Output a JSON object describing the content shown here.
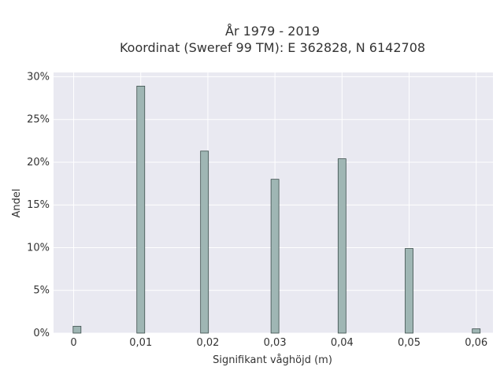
{
  "chart_data": {
    "type": "bar",
    "title_lines": [
      "År 1979 - 2019",
      "Koordinat (Sweref 99 TM): E 362828, N 6142708"
    ],
    "xlabel": "Signifikant våghöjd (m)",
    "ylabel": "Andel",
    "x_ticks": [
      "0",
      "0,01",
      "0,02",
      "0,03",
      "0,04",
      "0,05",
      "0,06"
    ],
    "x_tick_values": [
      0,
      0.01,
      0.02,
      0.03,
      0.04,
      0.05,
      0.06
    ],
    "y_ticks": [
      "0%",
      "5%",
      "10%",
      "15%",
      "20%",
      "25%",
      "30%"
    ],
    "y_tick_values": [
      0,
      5,
      10,
      15,
      20,
      25,
      30
    ],
    "xlim": [
      -0.003,
      0.0625
    ],
    "ylim": [
      0,
      30.5
    ],
    "x": [
      0.0005,
      0.01,
      0.0195,
      0.03,
      0.04,
      0.05,
      0.06
    ],
    "values": [
      0.8,
      28.9,
      21.3,
      18.0,
      20.4,
      9.9,
      0.5
    ],
    "grid": true,
    "colors": {
      "plot_background": "#e9e9f1",
      "bar_fill": "#9fb6b4",
      "bar_edge": "#3b4d4b",
      "grid": "#ffffff",
      "text": "#333333"
    }
  }
}
